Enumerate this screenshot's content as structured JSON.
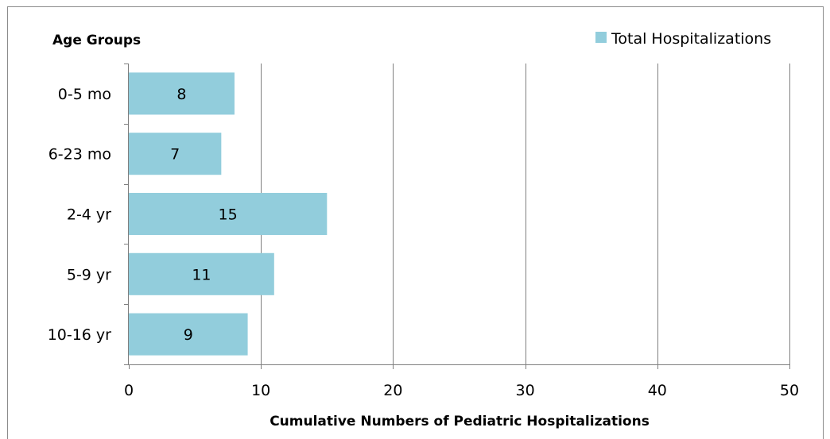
{
  "chart_data": {
    "type": "bar",
    "orientation": "horizontal",
    "categories": [
      "0-5 mo",
      "6-23 mo",
      "2-4 yr",
      "5-9 yr",
      "10-16 yr"
    ],
    "series": [
      {
        "name": "Total Hospitalizations",
        "values": [
          8,
          7,
          15,
          11,
          9
        ],
        "color": "#92cddc"
      }
    ],
    "data_labels": [
      "8",
      "7",
      "15",
      "11",
      "9"
    ],
    "ylabel": "Age Groups",
    "xlabel": "Cumulative Numbers of Pediatric Hospitalizations",
    "xlim": [
      0,
      50
    ],
    "xticks": [
      0,
      10,
      20,
      30,
      40,
      50
    ],
    "xtick_labels": [
      "0",
      "10",
      "20",
      "30",
      "40",
      "50"
    ],
    "grid": "vertical",
    "legend": "top-right"
  },
  "colors": {
    "bar": "#92cddc",
    "grid": "#7f7f7f",
    "axis": "#7f7f7f",
    "frame": "#8c8c8c"
  }
}
